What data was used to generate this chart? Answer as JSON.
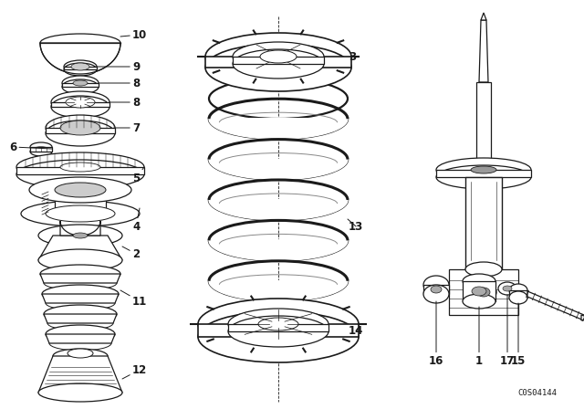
{
  "bg_color": "#ffffff",
  "line_color": "#1a1a1a",
  "fig_width": 6.4,
  "fig_height": 4.48,
  "dpi": 100,
  "catalog_number": "C0S04144",
  "lw": 0.9
}
